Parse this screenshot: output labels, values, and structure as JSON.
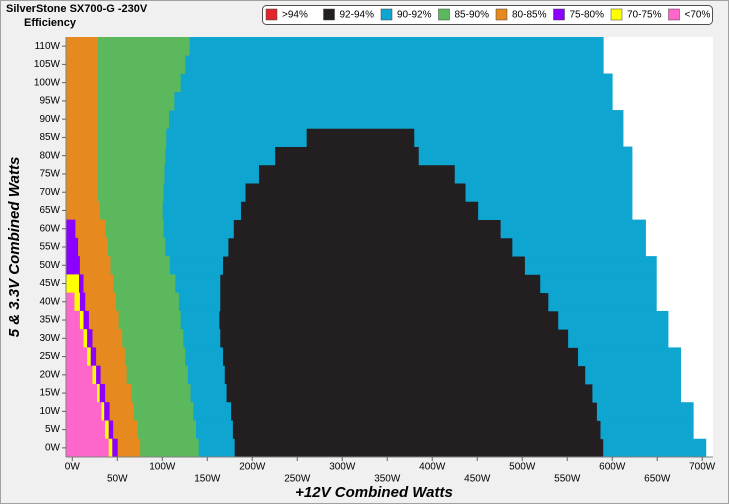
{
  "chart_data": {
    "type": "efficiency-map",
    "title": "SilverStone SX700-G -230V",
    "subtitle": "Efficiency",
    "x_label": "+12V Combined Watts",
    "y_label": "5 & 3.3V Combined Watts",
    "xlim": [
      -7,
      712
    ],
    "ylim": [
      -2.5,
      112.5
    ],
    "xticks": [
      {
        "value": 0,
        "label": "0W"
      },
      {
        "value": 50,
        "label": "50W"
      },
      {
        "value": 100,
        "label": "100W"
      },
      {
        "value": 150,
        "label": "150W"
      },
      {
        "value": 200,
        "label": "200W"
      },
      {
        "value": 250,
        "label": "250W"
      },
      {
        "value": 300,
        "label": "300W"
      },
      {
        "value": 350,
        "label": "350W"
      },
      {
        "value": 400,
        "label": "400W"
      },
      {
        "value": 450,
        "label": "450W"
      },
      {
        "value": 500,
        "label": "500W"
      },
      {
        "value": 550,
        "label": "550W"
      },
      {
        "value": 600,
        "label": "600W"
      },
      {
        "value": 650,
        "label": "650W"
      },
      {
        "value": 700,
        "label": "700W"
      }
    ],
    "yticks": [
      {
        "value": 0,
        "label": "0W"
      },
      {
        "value": 5,
        "label": "5W"
      },
      {
        "value": 10,
        "label": "10W"
      },
      {
        "value": 15,
        "label": "15W"
      },
      {
        "value": 20,
        "label": "20W"
      },
      {
        "value": 25,
        "label": "25W"
      },
      {
        "value": 30,
        "label": "30W"
      },
      {
        "value": 35,
        "label": "35W"
      },
      {
        "value": 40,
        "label": "40W"
      },
      {
        "value": 45,
        "label": "45W"
      },
      {
        "value": 50,
        "label": "50W"
      },
      {
        "value": 55,
        "label": "55W"
      },
      {
        "value": 60,
        "label": "60W"
      },
      {
        "value": 65,
        "label": "65W"
      },
      {
        "value": 70,
        "label": "70W"
      },
      {
        "value": 75,
        "label": "75W"
      },
      {
        "value": 80,
        "label": "80W"
      },
      {
        "value": 85,
        "label": "85W"
      },
      {
        "value": 90,
        "label": "90W"
      },
      {
        "value": 95,
        "label": "95W"
      },
      {
        "value": 100,
        "label": "100W"
      },
      {
        "value": 105,
        "label": "105W"
      },
      {
        "value": 110,
        "label": "110W"
      }
    ],
    "row_height": 5,
    "y": [
      0,
      5,
      10,
      15,
      20,
      25,
      30,
      35,
      40,
      45,
      50,
      55,
      60,
      65,
      70,
      75,
      80,
      85,
      90,
      95,
      100,
      105,
      110
    ],
    "series": [
      {
        "name": ">94%",
        "color": "#e0262b",
        "ranges": [
          null,
          null,
          null,
          null,
          null,
          null,
          null,
          null,
          null,
          null,
          null,
          null,
          null,
          null,
          null,
          null,
          null,
          null,
          null,
          null,
          null,
          null,
          null
        ]
      },
      {
        "name": "92-94%",
        "color": "#231f20",
        "ranges": [
          [
            [
              180,
              590
            ]
          ],
          [
            [
              178,
              587
            ]
          ],
          [
            [
              176,
              583
            ]
          ],
          [
            [
              171,
              578
            ]
          ],
          [
            [
              169,
              570
            ]
          ],
          [
            [
              167,
              562
            ]
          ],
          [
            [
              164,
              551
            ]
          ],
          [
            [
              163,
              540
            ]
          ],
          [
            [
              164,
              529
            ]
          ],
          [
            [
              164,
              520
            ]
          ],
          [
            [
              167,
              503
            ]
          ],
          [
            [
              173,
              489
            ]
          ],
          [
            [
              179,
              476
            ]
          ],
          [
            [
              187,
              451
            ]
          ],
          [
            [
              192,
              437
            ]
          ],
          [
            [
              207,
              425
            ]
          ],
          [
            [
              225,
              385
            ]
          ],
          [
            [
              260,
              380
            ]
          ],
          null,
          null,
          null,
          null,
          null
        ]
      },
      {
        "name": "90-92%",
        "color": "#0fa5d1",
        "ranges": [
          [
            [
              140,
              180
            ],
            [
              590,
              704
            ]
          ],
          [
            [
              137,
              178
            ],
            [
              587,
              690
            ]
          ],
          [
            [
              134,
              176
            ],
            [
              583,
              690
            ]
          ],
          [
            [
              131,
              171
            ],
            [
              578,
              676
            ]
          ],
          [
            [
              128,
              169
            ],
            [
              570,
              676
            ]
          ],
          [
            [
              125,
              167
            ],
            [
              562,
              676
            ]
          ],
          [
            [
              123,
              164
            ],
            [
              551,
              662
            ]
          ],
          [
            [
              120,
              163
            ],
            [
              540,
              662
            ]
          ],
          [
            [
              118,
              164
            ],
            [
              529,
              649
            ]
          ],
          [
            [
              114,
              164
            ],
            [
              520,
              649
            ]
          ],
          [
            [
              108,
              167
            ],
            [
              503,
              649
            ]
          ],
          [
            [
              103,
              173
            ],
            [
              489,
              637
            ]
          ],
          [
            [
              101,
              179
            ],
            [
              476,
              637
            ]
          ],
          [
            [
              100,
              187
            ],
            [
              451,
              622
            ]
          ],
          [
            [
              101,
              192
            ],
            [
              437,
              622
            ]
          ],
          [
            [
              102,
              207
            ],
            [
              425,
              622
            ]
          ],
          [
            [
              103,
              225
            ],
            [
              385,
              622
            ]
          ],
          [
            [
              104,
              260
            ],
            [
              380,
              612
            ]
          ],
          [
            [
              107,
              612
            ]
          ],
          [
            [
              113,
              600
            ]
          ],
          [
            [
              120,
              600
            ]
          ],
          [
            [
              125,
              590
            ]
          ],
          [
            [
              130,
              590
            ]
          ]
        ]
      },
      {
        "name": "85-90%",
        "color": "#5cb85c",
        "ranges": [
          [
            [
              75,
              140
            ]
          ],
          [
            [
              72,
              137
            ]
          ],
          [
            [
              68,
              134
            ]
          ],
          [
            [
              65,
              131
            ]
          ],
          [
            [
              60,
              128
            ]
          ],
          [
            [
              58,
              125
            ]
          ],
          [
            [
              55,
              123
            ]
          ],
          [
            [
              51,
              120
            ]
          ],
          [
            [
              48,
              118
            ]
          ],
          [
            [
              45,
              114
            ]
          ],
          [
            [
              42,
              108
            ]
          ],
          [
            [
              39,
              103
            ]
          ],
          [
            [
              36,
              101
            ]
          ],
          [
            [
              30,
              100
            ]
          ],
          [
            [
              28,
              101
            ]
          ],
          [
            [
              28,
              102
            ]
          ],
          [
            [
              28,
              103
            ]
          ],
          [
            [
              28,
              104
            ]
          ],
          [
            [
              28,
              107
            ]
          ],
          [
            [
              28,
              113
            ]
          ],
          [
            [
              28,
              120
            ]
          ],
          [
            [
              28,
              125
            ]
          ],
          [
            [
              28,
              130
            ]
          ]
        ]
      },
      {
        "name": "80-85%",
        "color": "#e68a1f",
        "ranges": [
          [
            [
              50,
              75
            ]
          ],
          [
            [
              45,
              72
            ]
          ],
          [
            [
              41,
              68
            ]
          ],
          [
            [
              36,
              65
            ]
          ],
          [
            [
              31,
              60
            ]
          ],
          [
            [
              26,
              58
            ]
          ],
          [
            [
              22,
              55
            ]
          ],
          [
            [
              18,
              51
            ]
          ],
          [
            [
              14,
              48
            ]
          ],
          [
            [
              12,
              45
            ]
          ],
          [
            [
              8,
              42
            ]
          ],
          [
            [
              6,
              39
            ]
          ],
          [
            [
              3,
              36
            ]
          ],
          [
            [
              -7,
              30
            ]
          ],
          [
            [
              -7,
              28
            ]
          ],
          [
            [
              -7,
              28
            ]
          ],
          [
            [
              -7,
              28
            ]
          ],
          [
            [
              -7,
              28
            ]
          ],
          [
            [
              -7,
              28
            ]
          ],
          [
            [
              -7,
              28
            ]
          ],
          [
            [
              -7,
              28
            ]
          ],
          [
            [
              -7,
              28
            ]
          ],
          [
            [
              -7,
              28
            ]
          ]
        ]
      },
      {
        "name": "75-80%",
        "color": "#8b00ff",
        "ranges": [
          [
            [
              44,
              50
            ]
          ],
          [
            [
              40,
              45
            ]
          ],
          [
            [
              35,
              41
            ]
          ],
          [
            [
              30,
              36
            ]
          ],
          [
            [
              26,
              31
            ]
          ],
          [
            [
              20,
              26
            ]
          ],
          [
            [
              16,
              22
            ]
          ],
          [
            [
              12,
              18
            ]
          ],
          [
            [
              8,
              14
            ]
          ],
          [
            [
              7,
              12
            ]
          ],
          [
            [
              -7,
              8
            ]
          ],
          [
            [
              -7,
              6
            ]
          ],
          [
            [
              -7,
              3
            ]
          ],
          null,
          null,
          null,
          null,
          null,
          null,
          null,
          null,
          null,
          null
        ]
      },
      {
        "name": "70-75%",
        "color": "#ffff00",
        "ranges": [
          [
            [
              40,
              44
            ]
          ],
          [
            [
              36,
              40
            ]
          ],
          [
            [
              32,
              35
            ]
          ],
          [
            [
              27,
              30
            ]
          ],
          [
            [
              22,
              26
            ]
          ],
          [
            [
              16,
              20
            ]
          ],
          [
            [
              12,
              16
            ]
          ],
          [
            [
              8,
              12
            ]
          ],
          [
            [
              2,
              8
            ]
          ],
          [
            [
              -7,
              7
            ]
          ],
          null,
          null,
          null,
          null,
          null,
          null,
          null,
          null,
          null,
          null,
          null,
          null,
          null
        ]
      },
      {
        "name": "<70%",
        "color": "#ff66cc",
        "ranges": [
          [
            [
              -7,
              40
            ]
          ],
          [
            [
              -7,
              36
            ]
          ],
          [
            [
              -7,
              32
            ]
          ],
          [
            [
              -7,
              27
            ]
          ],
          [
            [
              -7,
              22
            ]
          ],
          [
            [
              -7,
              16
            ]
          ],
          [
            [
              -7,
              12
            ]
          ],
          [
            [
              -7,
              8
            ]
          ],
          [
            [
              -7,
              2
            ]
          ],
          null,
          null,
          null,
          null,
          null,
          null,
          null,
          null,
          null,
          null,
          null,
          null,
          null,
          null
        ]
      }
    ]
  }
}
